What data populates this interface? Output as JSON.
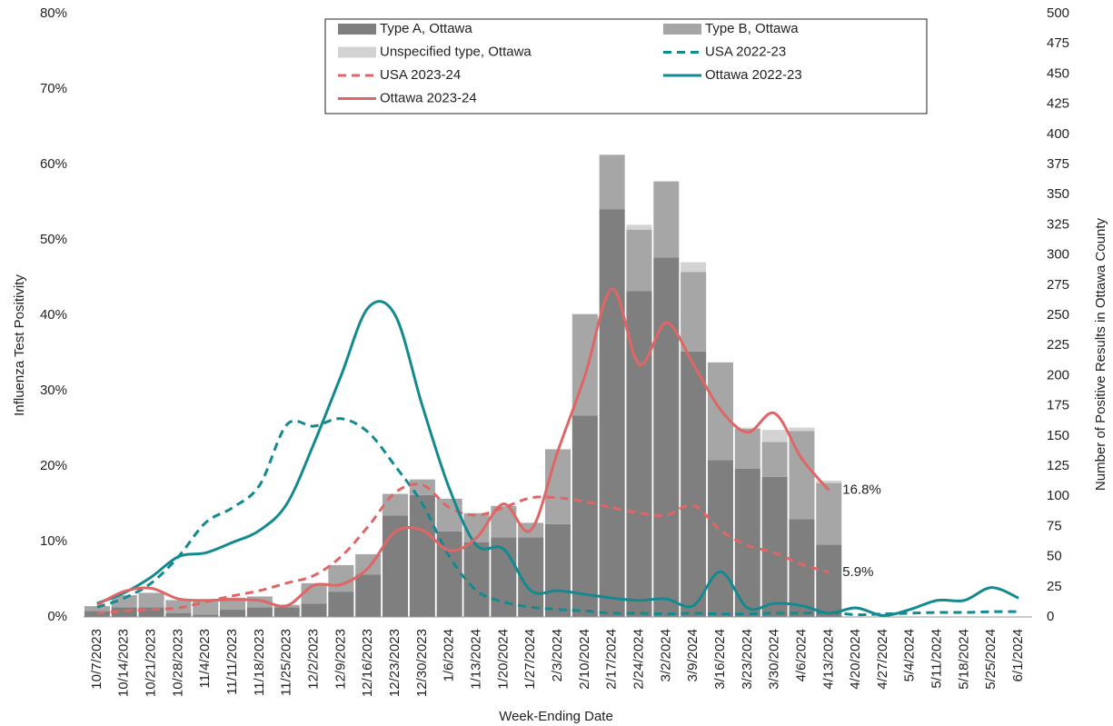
{
  "chart_data": {
    "type": "combo",
    "x_label": "Week-Ending Date",
    "y_label": "Influenza Test Positivity",
    "y2_label": "Number of Positive Results in Ottawa County",
    "categories": [
      "10/7/2023",
      "10/14/2023",
      "10/21/2023",
      "10/28/2023",
      "11/4/2023",
      "11/11/2023",
      "11/18/2023",
      "11/25/2023",
      "12/2/2023",
      "12/9/2023",
      "12/16/2023",
      "12/23/2023",
      "12/30/2023",
      "1/6/2024",
      "1/13/2024",
      "1/20/2024",
      "1/27/2024",
      "2/3/2024",
      "2/10/2024",
      "2/17/2024",
      "2/24/2024",
      "3/2/2024",
      "3/9/2024",
      "3/16/2024",
      "3/23/2024",
      "3/30/2024",
      "4/6/2024",
      "4/13/2024",
      "4/20/2024",
      "4/27/2024",
      "5/4/2024",
      "5/11/2024",
      "5/18/2024",
      "5/25/2024",
      "6/1/2024"
    ],
    "ylim": [
      0,
      80
    ],
    "yticks": [
      {
        "value": 0,
        "label": "0%"
      },
      {
        "value": 10,
        "label": "10%"
      },
      {
        "value": 20,
        "label": "20%"
      },
      {
        "value": 30,
        "label": "30%"
      },
      {
        "value": 40,
        "label": "40%"
      },
      {
        "value": 50,
        "label": "50%"
      },
      {
        "value": 60,
        "label": "60%"
      },
      {
        "value": 70,
        "label": "70%"
      },
      {
        "value": 80,
        "label": "80%"
      }
    ],
    "y2lim": [
      0,
      500
    ],
    "y2ticks": [
      0,
      25,
      50,
      75,
      100,
      125,
      150,
      175,
      200,
      225,
      250,
      275,
      300,
      325,
      350,
      375,
      400,
      425,
      450,
      475,
      500
    ],
    "series": [
      {
        "name": "Type A, Ottawa",
        "type": "bar",
        "axis": "y2",
        "color": "#7f7f7f",
        "values": [
          5,
          8,
          8,
          3,
          2,
          6,
          8,
          8,
          11,
          21,
          35,
          84,
          101,
          71,
          62,
          66,
          66,
          77,
          167,
          338,
          270,
          298,
          220,
          130,
          123,
          116,
          81,
          60,
          null,
          null,
          null,
          null,
          null,
          null,
          null
        ]
      },
      {
        "name": "Type B, Ottawa",
        "type": "bar",
        "axis": "y2",
        "color": "#a6a6a6",
        "values": [
          4,
          10,
          12,
          11,
          12,
          10,
          9,
          2,
          17,
          22,
          17,
          18,
          13,
          27,
          24,
          26,
          12,
          62,
          84,
          45,
          51,
          63,
          66,
          81,
          33,
          29,
          73,
          51,
          null,
          null,
          null,
          null,
          null,
          null,
          null
        ]
      },
      {
        "name": "Unspecified type, Ottawa",
        "type": "bar",
        "axis": "y2",
        "color": "#d3d3d3",
        "values": [
          0,
          0,
          0,
          0,
          0,
          0,
          0,
          0,
          0,
          0,
          0,
          0,
          0,
          0,
          0,
          0,
          0,
          0,
          0,
          0,
          4,
          0,
          8,
          0,
          1,
          10,
          3,
          2,
          null,
          null,
          null,
          null,
          null,
          null,
          null
        ]
      },
      {
        "name": "USA 2022-23",
        "type": "line",
        "dash": true,
        "color": "#128a8f",
        "values": [
          1.3,
          2.5,
          4.5,
          8,
          12.5,
          14.5,
          17.5,
          25.5,
          25.3,
          26.3,
          24.5,
          20,
          15,
          8,
          3.5,
          2,
          1.3,
          1,
          0.8,
          0.5,
          0.5,
          0.4,
          0.5,
          0.4,
          0.4,
          0.5,
          0.5,
          0.6,
          0.3,
          0.4,
          0.5,
          0.6,
          0.6,
          0.7,
          0.7
        ]
      },
      {
        "name": "USA 2023-24",
        "type": "line",
        "dash": true,
        "color": "#e06666",
        "values": [
          0.5,
          0.8,
          1,
          1.2,
          2,
          2.8,
          3.5,
          4.5,
          5.5,
          8,
          12,
          16.5,
          17.5,
          14.5,
          13.5,
          14.5,
          15.8,
          15.8,
          15.3,
          14.5,
          13.8,
          13.5,
          14.8,
          11.5,
          9.5,
          8.5,
          7,
          5.9,
          null,
          null,
          null,
          null,
          null,
          null,
          null
        ],
        "value_labels": [
          null,
          null,
          null,
          null,
          null,
          null,
          null,
          null,
          null,
          null,
          null,
          null,
          null,
          null,
          null,
          null,
          null,
          null,
          null,
          null,
          null,
          null,
          null,
          null,
          null,
          null,
          null,
          "5.9%",
          null,
          null,
          null,
          null,
          null,
          null,
          null
        ]
      },
      {
        "name": "Ottawa 2022-23",
        "type": "line",
        "dash": false,
        "color": "#128a8f",
        "values": [
          1.8,
          3.2,
          5.3,
          8,
          8.5,
          9.9,
          11.5,
          15,
          23,
          32,
          41,
          40,
          28,
          17,
          9.5,
          9,
          3.5,
          3.5,
          3,
          2.5,
          2.2,
          2.4,
          1.5,
          6,
          1.2,
          1.8,
          1.5,
          0.5,
          1.2,
          0.2,
          1,
          2.2,
          2.2,
          3.9,
          2.5
        ]
      },
      {
        "name": "Ottawa 2023-24",
        "type": "line",
        "dash": false,
        "color": "#e06666",
        "values": [
          1.6,
          3.4,
          3.8,
          2.4,
          2.2,
          2.3,
          2.2,
          1.5,
          4.2,
          4.3,
          6.5,
          11.3,
          11.5,
          8.8,
          10.5,
          15,
          11.5,
          22,
          32,
          43.5,
          33.5,
          39,
          33.5,
          27.5,
          24.5,
          27,
          21,
          16.8,
          null,
          null,
          null,
          null,
          null,
          null,
          null
        ],
        "value_labels": [
          null,
          null,
          null,
          null,
          null,
          null,
          null,
          null,
          null,
          null,
          null,
          null,
          null,
          null,
          null,
          null,
          null,
          null,
          null,
          null,
          null,
          null,
          null,
          null,
          null,
          null,
          null,
          "16.8%",
          null,
          null,
          null,
          null,
          null,
          null,
          null
        ]
      }
    ]
  }
}
